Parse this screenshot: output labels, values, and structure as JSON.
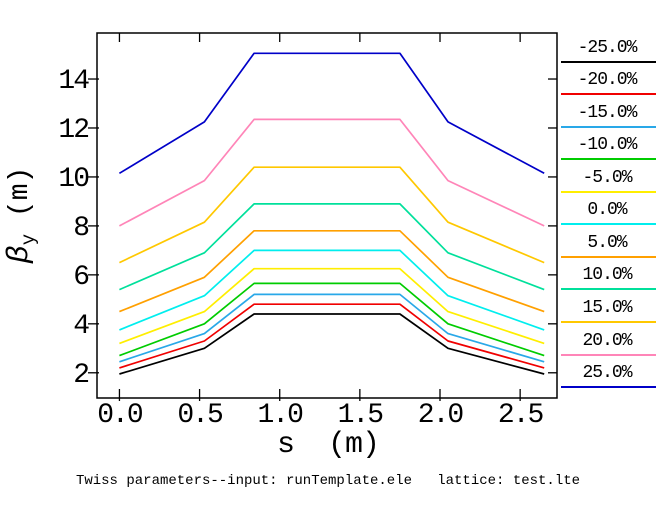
{
  "labels": {
    "xlabel_display": "s  (m)",
    "ylabel_beta": "β",
    "ylabel_sub": "y",
    "ylabel_rest": " (m)"
  },
  "chart_data": {
    "type": "line",
    "title": "Twiss parameters--input: runTemplate.ele   lattice: test.lte",
    "xlabel": "s (m)",
    "ylabel": "beta_y (m)",
    "xlim": [
      -0.14,
      2.73
    ],
    "ylim": [
      0.97,
      15.88
    ],
    "grid": false,
    "legend_position": "right",
    "x_tick_values": [
      0.0,
      0.5,
      1.0,
      1.5,
      2.0,
      2.5
    ],
    "x_tick_labels": [
      "0.0",
      "0.5",
      "1.0",
      "1.5",
      "2.0",
      "2.5"
    ],
    "y_tick_values": [
      2,
      4,
      6,
      8,
      10,
      12,
      14
    ],
    "y_tick_labels": [
      "2",
      "4",
      "6",
      "8",
      "10",
      "12",
      "14"
    ],
    "x": [
      0.0,
      0.53,
      0.84,
      1.75,
      2.05,
      2.65
    ],
    "series": [
      {
        "name": "-25.0%",
        "color": "#000000",
        "values": [
          1.95,
          3.0,
          4.4,
          4.4,
          3.0,
          1.95
        ]
      },
      {
        "name": "-20.0%",
        "color": "#f00000",
        "values": [
          2.2,
          3.3,
          4.8,
          4.8,
          3.3,
          2.2
        ]
      },
      {
        "name": "-15.0%",
        "color": "#29a8e8",
        "values": [
          2.45,
          3.6,
          5.2,
          5.2,
          3.6,
          2.45
        ]
      },
      {
        "name": "-10.0%",
        "color": "#00cc00",
        "values": [
          2.7,
          4.0,
          5.65,
          5.65,
          4.0,
          2.7
        ]
      },
      {
        "name": "-5.0%",
        "color": "#ffee00",
        "values": [
          3.2,
          4.5,
          6.25,
          6.25,
          4.5,
          3.2
        ]
      },
      {
        "name": "0.0%",
        "color": "#00eeee",
        "values": [
          3.75,
          5.15,
          7.0,
          7.0,
          5.15,
          3.75
        ]
      },
      {
        "name": "5.0%",
        "color": "#ffa000",
        "values": [
          4.5,
          5.9,
          7.8,
          7.8,
          5.9,
          4.5
        ]
      },
      {
        "name": "10.0%",
        "color": "#00e09b",
        "values": [
          5.4,
          6.9,
          8.9,
          8.9,
          6.9,
          5.4
        ]
      },
      {
        "name": "15.0%",
        "color": "#ffc800",
        "values": [
          6.5,
          8.15,
          10.4,
          10.4,
          8.15,
          6.5
        ]
      },
      {
        "name": "20.0%",
        "color": "#ff85b8",
        "values": [
          8.0,
          9.85,
          12.35,
          12.35,
          9.85,
          8.0
        ]
      },
      {
        "name": "25.0%",
        "color": "#0000c8",
        "values": [
          10.15,
          12.25,
          15.05,
          15.05,
          12.25,
          10.15
        ]
      }
    ]
  }
}
